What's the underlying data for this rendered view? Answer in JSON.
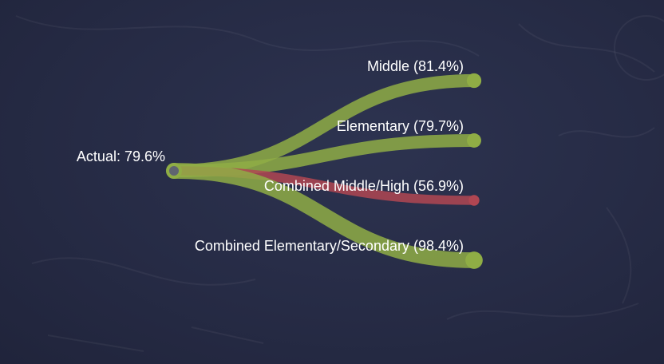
{
  "chart_data": {
    "type": "line",
    "source": {
      "label": "Actual: 79.6%",
      "value": 79.6
    },
    "series": [
      {
        "name": "Middle",
        "label": "Middle (81.4%)",
        "value": 81.4,
        "color": "#8fad45"
      },
      {
        "name": "Elementary",
        "label": "Elementary (79.7%)",
        "value": 79.7,
        "color": "#8fad45"
      },
      {
        "name": "Combined Middle/High",
        "label": "Combined Middle/High (56.9%)",
        "value": 56.9,
        "color": "#b04652"
      },
      {
        "name": "Combined Elementary/Secondary",
        "label": "Combined Elementary/Secondary (98.4%)",
        "value": 98.4,
        "color": "#8fad45"
      }
    ],
    "colors": {
      "above": "#8fad45",
      "below": "#b04652",
      "source_ring": "#8fad45",
      "source_core": "#5f6470",
      "label": "#ffffff",
      "background": "#262b45"
    }
  }
}
